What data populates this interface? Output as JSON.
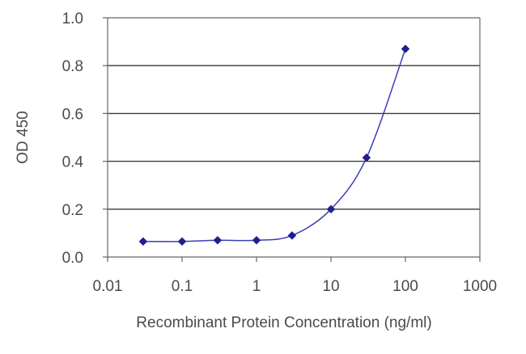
{
  "colors": {
    "series": "#1f1f8f",
    "curve": "#3d3db5",
    "grid": "#3a3a3a",
    "axis": "#666666",
    "text": "#4a4a4a"
  },
  "chart_data": {
    "type": "scatter",
    "title": "",
    "xlabel": "Recombinant Protein Concentration (ng/ml)",
    "ylabel": "OD 450",
    "xscale": "log",
    "xlim": [
      0.01,
      1000
    ],
    "ylim": [
      0.0,
      1.0
    ],
    "grid": "horizontal major lines",
    "legend": "none",
    "x_tick_labels": [
      "0.01",
      "0.1",
      "1",
      "10",
      "100",
      "1000"
    ],
    "y_tick_labels": [
      "0.0",
      "0.2",
      "0.4",
      "0.6",
      "0.8",
      "1.0"
    ],
    "series": [
      {
        "x": [
          0.03,
          0.1,
          0.3,
          1,
          3,
          10,
          30,
          100
        ],
        "y": [
          0.065,
          0.065,
          0.07,
          0.07,
          0.09,
          0.2,
          0.415,
          0.87
        ],
        "marker": "diamond",
        "line": "smoothed"
      }
    ]
  }
}
